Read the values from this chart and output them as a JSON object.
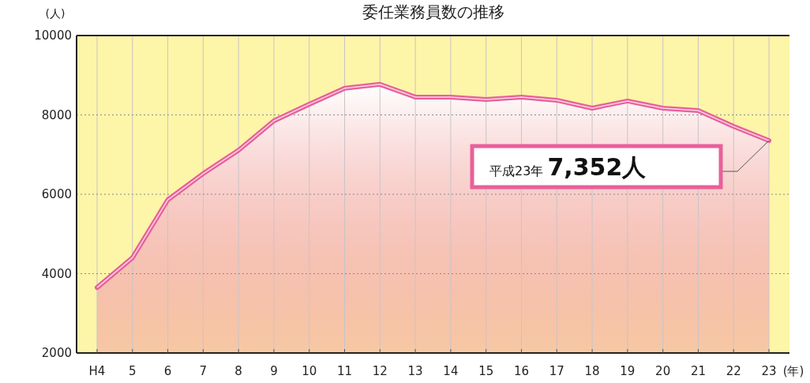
{
  "chart_data": {
    "type": "area",
    "title": "委任業務員数の推移",
    "ylabel": "(人)",
    "xlabel": "(年)",
    "categories": [
      "H4",
      "5",
      "6",
      "7",
      "8",
      "9",
      "10",
      "11",
      "12",
      "13",
      "14",
      "15",
      "16",
      "17",
      "18",
      "19",
      "20",
      "21",
      "22",
      "23"
    ],
    "values": [
      3650,
      4400,
      5860,
      6520,
      7110,
      7850,
      8270,
      8670,
      8770,
      8450,
      8450,
      8390,
      8450,
      8370,
      8170,
      8350,
      8170,
      8110,
      7710,
      7352
    ],
    "color": "#e8609a",
    "ylim": [
      2000,
      10000
    ],
    "yticks": [
      2000,
      4000,
      6000,
      8000,
      10000
    ],
    "grid": true,
    "line_style": "solid",
    "marker": "none",
    "annotations": [
      "平成23年 **7,352人**"
    ]
  }
}
